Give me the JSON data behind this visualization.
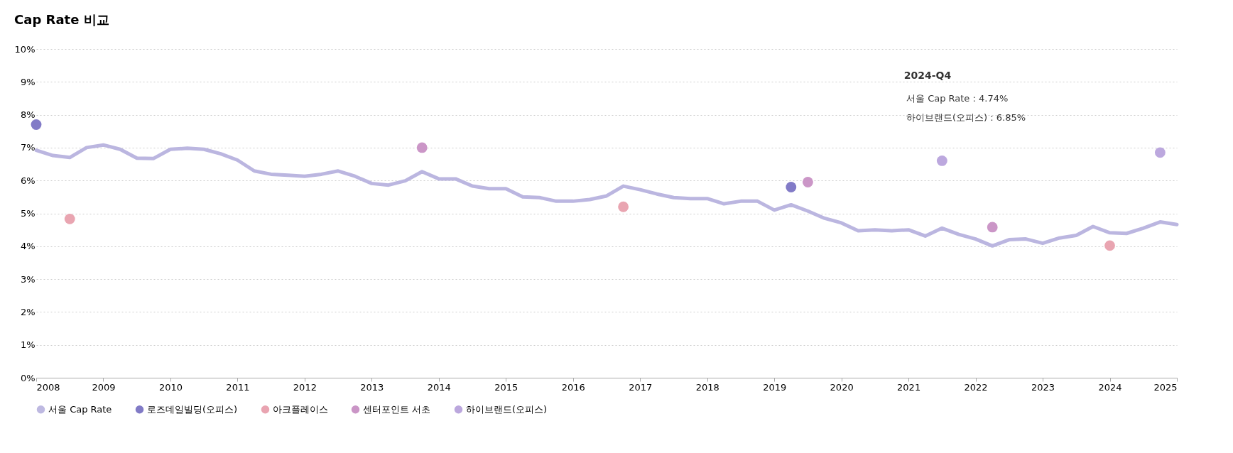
{
  "chart_data": {
    "type": "line",
    "title": "Cap Rate 비교",
    "x": [
      2008.0,
      2008.25,
      2008.5,
      2008.75,
      2009.0,
      2009.25,
      2009.5,
      2009.75,
      2010.0,
      2010.25,
      2010.5,
      2010.75,
      2011.0,
      2011.25,
      2011.5,
      2011.75,
      2012.0,
      2012.25,
      2012.5,
      2012.75,
      2013.0,
      2013.25,
      2013.5,
      2013.75,
      2014.0,
      2014.25,
      2014.5,
      2014.75,
      2015.0,
      2015.25,
      2015.5,
      2015.75,
      2016.0,
      2016.25,
      2016.5,
      2016.75,
      2017.0,
      2017.25,
      2017.5,
      2017.75,
      2018.0,
      2018.25,
      2018.5,
      2018.75,
      2019.0,
      2019.25,
      2019.5,
      2019.75,
      2020.0,
      2020.25,
      2020.5,
      2020.75,
      2021.0,
      2021.25,
      2021.5,
      2021.75,
      2022.0,
      2022.25,
      2022.5,
      2022.75,
      2023.0,
      2023.25,
      2023.5,
      2023.75,
      2024.0,
      2024.25,
      2024.5,
      2024.75,
      2025.0
    ],
    "series": [
      {
        "name": "서울 Cap Rate",
        "color": "#bbb6e0",
        "line_style": "solid",
        "marker": "none",
        "values": [
          6.92,
          6.76,
          6.7,
          7.0,
          7.08,
          6.95,
          6.68,
          6.67,
          6.95,
          6.98,
          6.95,
          6.81,
          6.62,
          6.29,
          6.19,
          6.16,
          6.13,
          6.19,
          6.29,
          6.13,
          5.91,
          5.86,
          5.99,
          6.27,
          6.05,
          6.05,
          5.83,
          5.75,
          5.75,
          5.5,
          5.48,
          5.37,
          5.37,
          5.42,
          5.53,
          5.83,
          5.72,
          5.59,
          5.48,
          5.45,
          5.45,
          5.29,
          5.37,
          5.37,
          5.1,
          5.26,
          5.07,
          4.85,
          4.71,
          4.47,
          4.5,
          4.47,
          4.5,
          4.31,
          4.55,
          4.36,
          4.22,
          4.01,
          4.2,
          4.22,
          4.09,
          4.25,
          4.33,
          4.6,
          4.41,
          4.39,
          4.55,
          4.74,
          4.66
        ]
      },
      {
        "name": "로즈데일빌딩(오피스)",
        "type": "scatter",
        "marker": "circle",
        "color": "#7b74c4",
        "x": [
          2008.0,
          2019.25
        ],
        "values": [
          7.7,
          5.8
        ]
      },
      {
        "name": "아크플레이스",
        "type": "scatter",
        "marker": "circle",
        "color": "#e8a0ad",
        "x": [
          2008.5,
          2016.75,
          2024.0
        ],
        "values": [
          4.83,
          5.2,
          4.02
        ]
      },
      {
        "name": "센터포인트 서초",
        "type": "scatter",
        "marker": "circle",
        "color": "#c890c4",
        "x": [
          2013.75,
          2019.5,
          2022.25
        ],
        "values": [
          7.0,
          5.95,
          4.58
        ]
      },
      {
        "name": "하이브랜드(오피스)",
        "type": "scatter",
        "marker": "circle",
        "color": "#b8a3dc",
        "x": [
          2021.5,
          2024.75
        ],
        "values": [
          6.6,
          6.85
        ]
      }
    ],
    "xlim": [
      2008,
      2025
    ],
    "xticks": [
      2008,
      2009,
      2010,
      2011,
      2012,
      2013,
      2014,
      2015,
      2016,
      2017,
      2018,
      2019,
      2020,
      2021,
      2022,
      2023,
      2024,
      2025
    ],
    "ylim": [
      0,
      10
    ],
    "yticks": [
      {
        "value": 0,
        "label": "0%"
      },
      {
        "value": 1,
        "label": "1%"
      },
      {
        "value": 2,
        "label": "2%"
      },
      {
        "value": 3,
        "label": "3%"
      },
      {
        "value": 4,
        "label": "4%"
      },
      {
        "value": 5,
        "label": "5%"
      },
      {
        "value": 6,
        "label": "6%"
      },
      {
        "value": 7,
        "label": "7%"
      },
      {
        "value": 8,
        "label": "8%"
      },
      {
        "value": 9,
        "label": "9%"
      },
      {
        "value": 10,
        "label": "10%"
      }
    ],
    "grid": "y",
    "legend": "bottom",
    "annotations": [
      "2024-Q4",
      "서울 Cap Rate : 4.74%",
      "하이브랜드(오피스) : 6.85%"
    ]
  }
}
